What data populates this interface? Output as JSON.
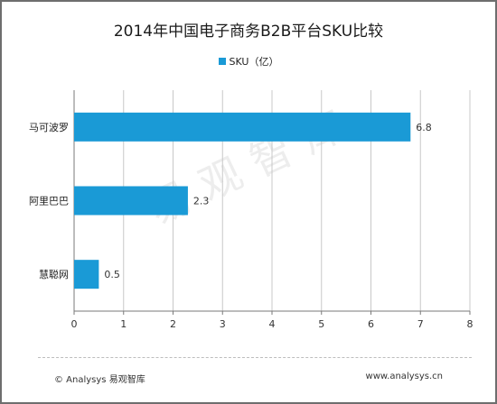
{
  "chart_data": {
    "type": "bar",
    "orientation": "horizontal",
    "title": "2014年中国电子商务B2B平台SKU比较",
    "categories": [
      "马可波罗",
      "阿里巴巴",
      "慧聪网"
    ],
    "series": [
      {
        "name": "SKU（亿）",
        "values": [
          6.8,
          2.3,
          0.5
        ],
        "color": "#1a9ad6"
      }
    ],
    "xlim": [
      0,
      8
    ],
    "xticks": [
      0,
      1,
      2,
      3,
      4,
      5,
      6,
      7,
      8
    ],
    "grid": "vertical",
    "legend_position": "top",
    "xlabel": "",
    "ylabel": ""
  },
  "watermark": "易观智库",
  "footer": {
    "left": "© Analysys 易观智库",
    "right": "www.analysys.cn"
  },
  "colors": {
    "bar": "#1a9ad6",
    "grid": "#c8c8c8",
    "axis": "#7a7a7a"
  }
}
